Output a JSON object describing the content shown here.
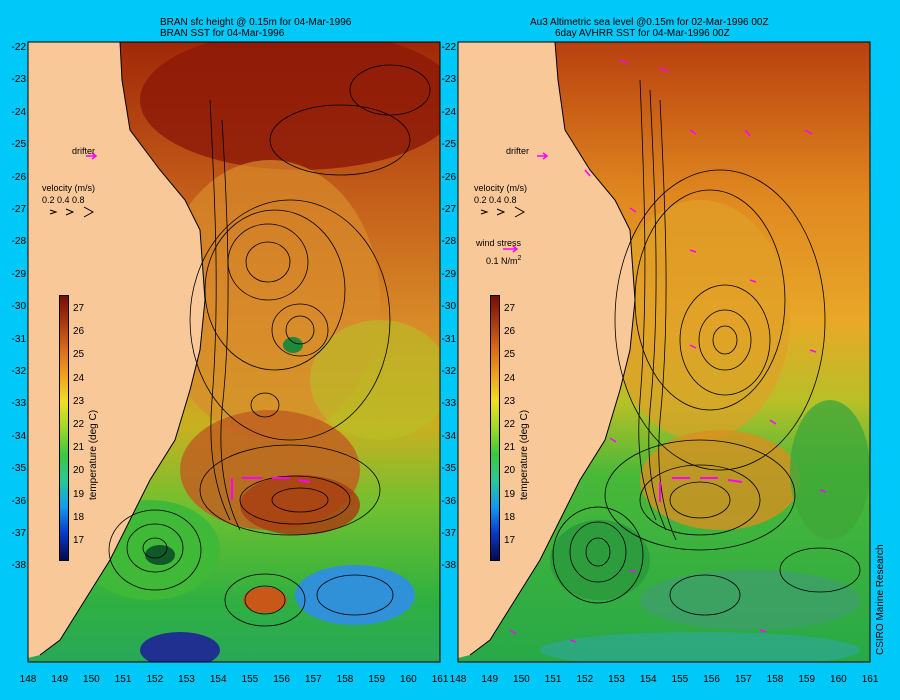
{
  "figure_panels": [
    {
      "id": "model",
      "title_line1": "BRAN sfc height @ 0.15m for 04-Mar-1996",
      "title_line2": "BRAN SST for 04-Mar-1996"
    },
    {
      "id": "observed",
      "title_line1": "Au3 Altimetric sea level  @0.15m  for 02-Mar-1996 00Z",
      "title_line2": "6day AVHRR SST for 04-Mar-1996 00Z"
    }
  ],
  "legend": {
    "drifter_label": "drifter",
    "velocity_label": "velocity (m/s)",
    "velocity_scale": "0.2 0.4 0.8",
    "wind_label": "wind stress",
    "wind_scale": "0.1 N/m",
    "wind_scale_exp": "2"
  },
  "colorbar": {
    "label": "temperature (deg C)",
    "ticks": [
      "27",
      "26",
      "25",
      "24",
      "23",
      "22",
      "21",
      "20",
      "19",
      "18",
      "17"
    ]
  },
  "axes": {
    "longitude_ticks": [
      "148",
      "149",
      "150",
      "151",
      "152",
      "153",
      "154",
      "155",
      "156",
      "157",
      "158",
      "159",
      "160",
      "161"
    ],
    "latitude_ticks": [
      "-22",
      "-23",
      "-24",
      "-25",
      "-26",
      "-27",
      "-28",
      "-29",
      "-30",
      "-31",
      "-32",
      "-33",
      "-34",
      "-35",
      "-36",
      "-37",
      "-38"
    ]
  },
  "credit": "CSIRO Marine Research",
  "colors": {
    "background": "#00c8f8",
    "land": "#f8c898",
    "drifter_arrow": "#ff00ff"
  }
}
